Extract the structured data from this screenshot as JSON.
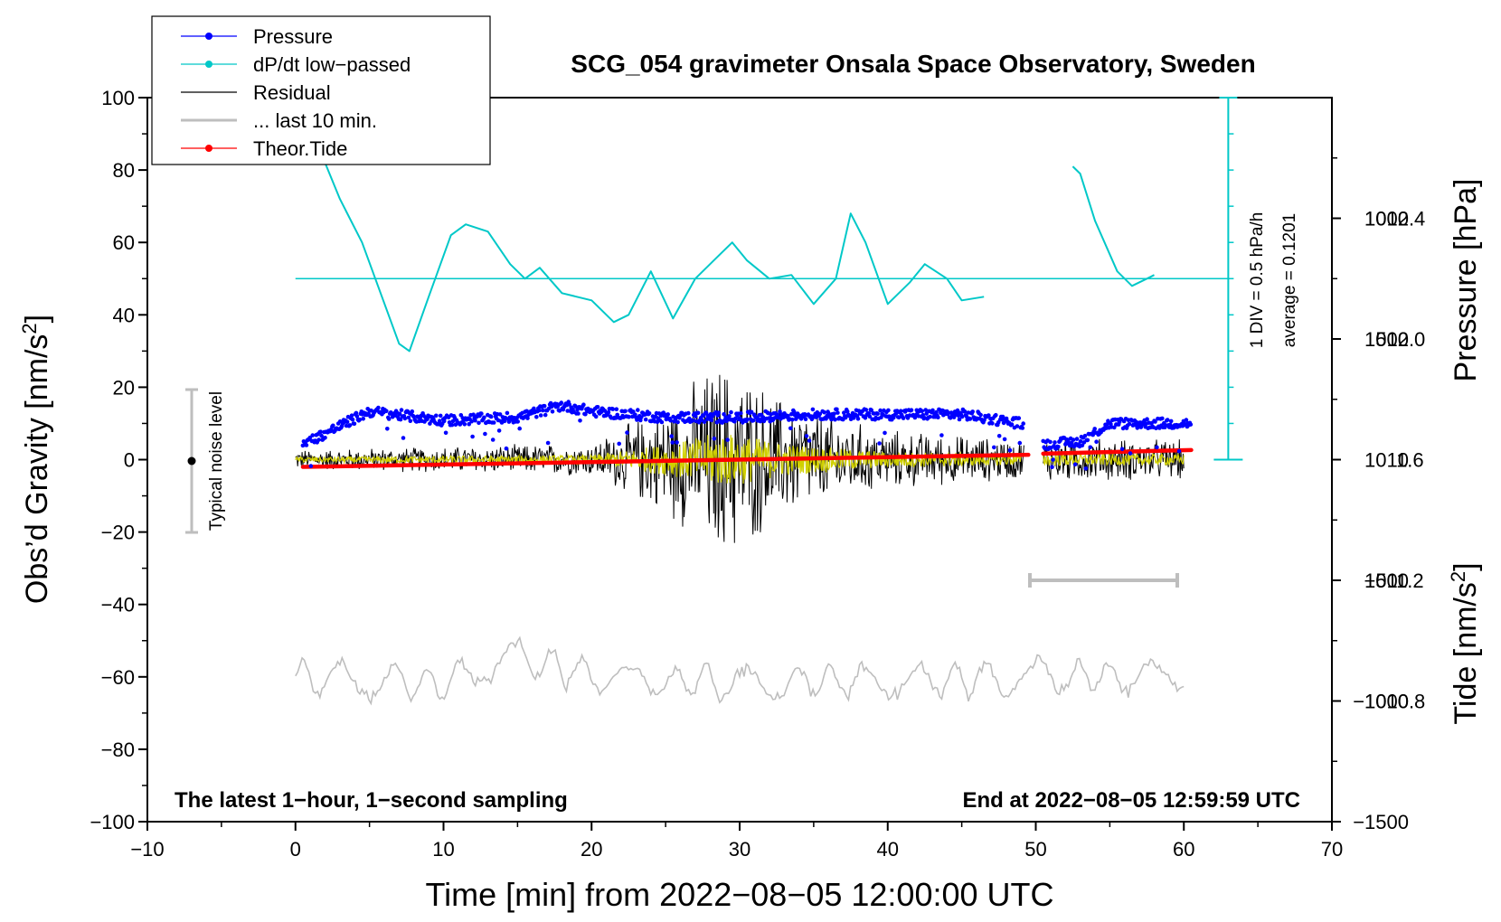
{
  "chart_data": {
    "type": "line",
    "title": "SCG_054 gravimeter Onsala Space Observatory, Sweden",
    "xlabel": "Time [min] from 2022−08−05 12:00:00 UTC",
    "ylabel_left": "Obs’d Gravity [nm/s",
    "ylabel_left_sup": "2",
    "ylabel_left_end": "]",
    "ylabel_right_top": "Pressure [hPa]",
    "ylabel_right_bottom": "Tide [nm/s",
    "ylabel_right_bottom_sup": "2",
    "ylabel_right_bottom_end": "]",
    "xlim": [
      -10,
      70
    ],
    "ylim": [
      -100,
      100
    ],
    "x_ticks": [
      "−10",
      "0",
      "10",
      "20",
      "30",
      "40",
      "50",
      "60",
      "70"
    ],
    "y_ticks": [
      "100",
      "80",
      "60",
      "40",
      "20",
      "0",
      "−20",
      "−40",
      "−60",
      "−80",
      "−100"
    ],
    "pressure_ticks": [
      "1012.4",
      "1012.0",
      "1011.6",
      "1011.2",
      "1010.8"
    ],
    "pressure_range": [
      1010.4,
      1012.8
    ],
    "tide_ticks": [
      "1000",
      "500",
      "0",
      "−500",
      "−1000",
      "−1500"
    ],
    "tide_range": [
      -1500,
      1500
    ],
    "legend": [
      {
        "label": "Pressure",
        "color": "#0000ff",
        "marker": true
      },
      {
        "label": "dP/dt low−passed",
        "color": "#00c8c8",
        "marker": true
      },
      {
        "label": "Residual",
        "color": "#000000",
        "marker": false
      },
      {
        "label": "... last 10 min.",
        "color": "#bebebe",
        "marker": false
      },
      {
        "label": "Theor.Tide",
        "color": "#ff0000",
        "marker": true
      }
    ],
    "annotations": {
      "noise": "Typical noise level",
      "div": "1 DIV = 0.5 hPa/h",
      "average": "average = 0.1201",
      "bottom_left": "The latest 1−hour, 1−second sampling",
      "bottom_right": "End at 2022−08−05 12:59:59 UTC"
    },
    "series": [
      {
        "name": "Pressure",
        "unit": "hPa",
        "color": "#0000ff",
        "x": [
          0.5,
          5,
          10,
          15,
          18,
          20,
          25,
          30,
          35,
          40,
          45,
          49,
          50.5,
          53,
          55,
          60
        ],
        "values": [
          1011.65,
          1011.76,
          1011.73,
          1011.74,
          1011.78,
          1011.76,
          1011.74,
          1011.74,
          1011.75,
          1011.75,
          1011.75,
          1011.72,
          1011.65,
          1011.66,
          1011.72,
          1011.72
        ]
      },
      {
        "name": "dP/dt low-passed",
        "unit": "nm/s2 (scaled)",
        "color": "#00c8c8",
        "x": [
          2,
          3,
          4.5,
          7,
          7.7,
          9,
          10.5,
          11.5,
          13,
          14.5,
          15.5,
          16.5,
          18,
          20,
          21.5,
          22.5,
          24,
          25.5,
          27,
          28.5,
          29.5,
          30.5,
          32,
          33.5,
          35,
          36.5,
          37.5,
          38.5,
          40,
          41.5,
          42.5,
          44,
          45,
          46.5
        ],
        "values": [
          82,
          72,
          60,
          32,
          30,
          45,
          62,
          65,
          63,
          54,
          50,
          53,
          46,
          44,
          38,
          40,
          52,
          39,
          50,
          56,
          60,
          55,
          50,
          51,
          43,
          50,
          68,
          60,
          43,
          49,
          54,
          50,
          44,
          45
        ]
      },
      {
        "name": "dP/dt low-passed (segment 2)",
        "color": "#00c8c8",
        "x": [
          52.5,
          53,
          54,
          55.5,
          56.5,
          57.5,
          58
        ],
        "values": [
          81,
          79,
          66,
          52,
          48,
          50,
          51
        ]
      },
      {
        "name": "Residual",
        "unit": "nm/s2",
        "color": "#000000",
        "x": [
          0,
          10,
          20,
          23,
          26,
          28.5,
          30,
          33,
          37,
          40,
          49,
          50.5,
          60
        ],
        "envelope": [
          3,
          4,
          5,
          12,
          20,
          30,
          28,
          18,
          12,
          9,
          6,
          7,
          6
        ]
      },
      {
        "name": "... last 10 min.",
        "unit": "nm/s2",
        "color": "#bebebe",
        "x": [
          0,
          10,
          15,
          20,
          30,
          40,
          50,
          60
        ],
        "values": [
          -60,
          -62,
          -54,
          -60,
          -62,
          -61,
          -60,
          -60
        ],
        "span_minutes": [
          50,
          60
        ]
      },
      {
        "name": "Theor.Tide",
        "unit": "nm/s2",
        "color": "#ff0000",
        "x": [
          0.5,
          49.5,
          50.5,
          60.5
        ],
        "values": [
          -30,
          20,
          25,
          40
        ]
      }
    ]
  }
}
